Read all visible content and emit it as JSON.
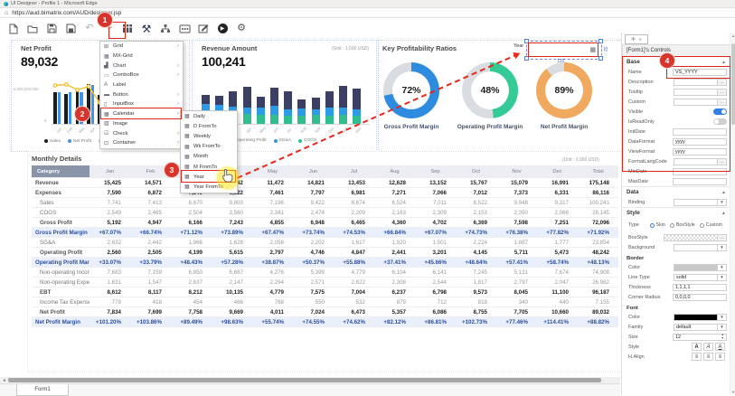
{
  "browser": {
    "title": "UI Designer - Profile 1 - Microsoft Edge",
    "url": "https://aud.bimatrix.com/AUD/designer.jsp"
  },
  "toolbar": {
    "icons": [
      "new-file-icon",
      "open-folder-icon",
      "save-icon",
      "save-all-icon",
      "undo-icon",
      "redo-icon",
      "data-table-icon",
      "design-tools-icon",
      "hierarchy-icon",
      "dataset-icon",
      "edit-icon",
      "run-icon",
      "settings-icon"
    ]
  },
  "menu": {
    "items": [
      {
        "label": "Grid",
        "icon": "grid-icon",
        "submenu": true
      },
      {
        "label": "MX-Grid",
        "icon": "mx-grid-icon",
        "submenu": false
      },
      {
        "label": "Chart",
        "icon": "chart-icon",
        "submenu": true
      },
      {
        "label": "ComboBox",
        "icon": "combobox-icon",
        "submenu": true
      },
      {
        "label": "Label",
        "icon": "label-icon",
        "submenu": false
      },
      {
        "label": "Button",
        "icon": "button-icon",
        "submenu": true
      },
      {
        "label": "InputBox",
        "icon": "inputbox-icon",
        "submenu": true
      },
      {
        "label": "Calendar",
        "icon": "calendar-icon",
        "submenu": true,
        "highlighted": true
      },
      {
        "label": "Image",
        "icon": "image-icon",
        "submenu": false
      },
      {
        "label": "Check",
        "icon": "check-icon",
        "submenu": true
      },
      {
        "label": "Container",
        "icon": "container-icon",
        "submenu": true
      }
    ]
  },
  "submenu": {
    "items": [
      {
        "label": "Daily"
      },
      {
        "label": "D FromTo"
      },
      {
        "label": "Weekly"
      },
      {
        "label": "Wk FromTo"
      },
      {
        "label": "Month"
      },
      {
        "label": "M FromTo"
      },
      {
        "label": "Year",
        "highlighted": true
      },
      {
        "label": "Year FromTo"
      }
    ]
  },
  "annotations": {
    "badges": [
      "1",
      "2",
      "3",
      "4"
    ]
  },
  "canvas": {
    "net_profit": {
      "title": "Net Profit",
      "value": "89,032",
      "y_axis_top": "6,000,000,000",
      "y_axis_bottom": "0",
      "legend": [
        "Sales",
        "Net Profit"
      ]
    },
    "revenue": {
      "title": "Revenue Amount",
      "unit": "(Unit : 1,000 USD)",
      "value": "100,241",
      "legend": [
        "Operating Profit",
        "SG&A",
        "COGS"
      ]
    },
    "ratios": {
      "title": "Key Profitability Ratios",
      "donuts": [
        {
          "pct": "72%",
          "label": "Gross Profit Margin",
          "color": "#2e8ce0"
        },
        {
          "pct": "48%",
          "label": "Operating Profit Margin",
          "color": "#35cb96"
        },
        {
          "pct": "89%",
          "label": "Net Profit Margin",
          "color": "#f0a95f"
        }
      ]
    },
    "calendar_control": {
      "label": "Year",
      "width_dim": "120",
      "height_dim": "32"
    },
    "table": {
      "title": "Monthly Details",
      "unit": "(Unit : 1,000 USD)",
      "columns": [
        "Category",
        "Jan",
        "Feb",
        "Mar",
        "Apr",
        "May",
        "Jun",
        "Jul",
        "Aug",
        "Sep",
        "Oct",
        "Nov",
        "Dec",
        "Total"
      ],
      "rows": [
        {
          "label": "Revenue",
          "style": "bold",
          "indent": false,
          "cells": [
            "15,425",
            "14,571",
            "15,447",
            "16,342",
            "11,472",
            "14,821",
            "13,453",
            "12,628",
            "13,152",
            "15,767",
            "15,079",
            "16,991",
            "175,148"
          ]
        },
        {
          "label": "Expenses",
          "style": "bold",
          "indent": false,
          "cells": [
            "7,590",
            "6,872",
            "7,540",
            "6,822",
            "7,461",
            "7,797",
            "6,981",
            "7,271",
            "7,066",
            "7,012",
            "7,373",
            "6,331",
            "86,116"
          ]
        },
        {
          "label": "Sales",
          "style": "sub",
          "indent": true,
          "cells": [
            "7,741",
            "7,413",
            "8,670",
            "9,803",
            "7,196",
            "9,422",
            "8,674",
            "6,524",
            "7,011",
            "8,522",
            "9,948",
            "9,317",
            "100,241"
          ]
        },
        {
          "label": "COGS",
          "style": "sub",
          "indent": true,
          "cells": [
            "2,549",
            "2,465",
            "2,504",
            "2,560",
            "2,341",
            "2,474",
            "2,209",
            "2,163",
            "2,309",
            "2,153",
            "2,350",
            "2,066",
            "28,145"
          ]
        },
        {
          "label": "Gross Profit",
          "style": "bold",
          "indent": true,
          "cells": [
            "5,192",
            "4,947",
            "6,166",
            "7,243",
            "4,855",
            "6,948",
            "6,465",
            "4,360",
            "4,702",
            "6,369",
            "7,598",
            "7,251",
            "72,096"
          ]
        },
        {
          "label": "Gross Profit Margin",
          "style": "margin",
          "indent": false,
          "cells": [
            "+67.07%",
            "+66.74%",
            "+71.12%",
            "+73.89%",
            "+67.47%",
            "+73.74%",
            "+74.53%",
            "+66.84%",
            "+67.07%",
            "+74.73%",
            "+76.38%",
            "+77.82%",
            "+71.92%"
          ]
        },
        {
          "label": "SG&A",
          "style": "sub",
          "indent": true,
          "cells": [
            "2,632",
            "2,442",
            "1,966",
            "1,628",
            "2,058",
            "2,202",
            "1,617",
            "1,920",
            "1,501",
            "2,224",
            "1,887",
            "1,777",
            "23,854"
          ]
        },
        {
          "label": "Operating Profit",
          "style": "bold",
          "indent": true,
          "cells": [
            "2,560",
            "2,505",
            "4,199",
            "5,615",
            "2,797",
            "4,746",
            "4,847",
            "2,441",
            "3,201",
            "4,145",
            "5,711",
            "5,473",
            "48,242"
          ]
        },
        {
          "label": "Operating Profit Margin",
          "style": "margin",
          "indent": false,
          "cells": [
            "+33.07%",
            "+33.79%",
            "+48.43%",
            "+57.28%",
            "+38.87%",
            "+50.37%",
            "+55.88%",
            "+37.41%",
            "+45.66%",
            "+48.64%",
            "+57.41%",
            "+58.74%",
            "+48.13%"
          ]
        },
        {
          "label": "Non-operating Income",
          "style": "sub",
          "indent": true,
          "cells": [
            "7,683",
            "7,159",
            "6,850",
            "6,667",
            "4,276",
            "5,399",
            "4,779",
            "6,104",
            "6,141",
            "7,245",
            "5,131",
            "7,674",
            "74,908"
          ]
        },
        {
          "label": "Non-operating Expense",
          "style": "sub",
          "indent": true,
          "cells": [
            "1,631",
            "1,547",
            "2,637",
            "2,147",
            "2,294",
            "2,571",
            "2,622",
            "2,308",
            "2,544",
            "1,817",
            "2,797",
            "2,047",
            "26,962"
          ]
        },
        {
          "label": "EBT",
          "style": "bold",
          "indent": true,
          "cells": [
            "8,612",
            "8,117",
            "8,212",
            "10,135",
            "4,779",
            "7,575",
            "7,004",
            "6,237",
            "6,798",
            "9,573",
            "8,045",
            "11,100",
            "96,187"
          ]
        },
        {
          "label": "Income Tax Expense",
          "style": "sub",
          "indent": true,
          "cells": [
            "778",
            "418",
            "454",
            "466",
            "768",
            "550",
            "532",
            "879",
            "712",
            "818",
            "340",
            "440",
            "7,155"
          ]
        },
        {
          "label": "Net Profit",
          "style": "bold",
          "indent": true,
          "cells": [
            "7,834",
            "7,699",
            "7,758",
            "9,669",
            "4,011",
            "7,024",
            "6,473",
            "5,357",
            "6,086",
            "8,755",
            "7,705",
            "10,660",
            "89,032"
          ]
        },
        {
          "label": "Net Profit Margin",
          "style": "margin",
          "indent": false,
          "cells": [
            "+101.20%",
            "+103.86%",
            "+89.49%",
            "+98.63%",
            "+55.74%",
            "+74.55%",
            "+74.62%",
            "+82.12%",
            "+86.81%",
            "+102.73%",
            "+77.46%",
            "+114.41%",
            "+88.82%"
          ]
        }
      ]
    }
  },
  "panel": {
    "header": "[Form1]'s Controls",
    "sections": [
      {
        "title": "Base",
        "rows": [
          {
            "label": "Name",
            "type": "input",
            "value": "VS_YYYY",
            "highlight": true
          },
          {
            "label": "Description",
            "type": "ellipsis",
            "value": ""
          },
          {
            "label": "Tooltip",
            "type": "ellipsis",
            "value": ""
          },
          {
            "label": "Custom",
            "type": "ellipsis",
            "value": ""
          },
          {
            "label": "Visible",
            "type": "toggle",
            "value": "on"
          },
          {
            "label": "IsReadOnly",
            "type": "toggle",
            "value": "off"
          },
          {
            "label": "InitDate",
            "type": "input",
            "value": ""
          },
          {
            "label": "DataFormat",
            "type": "input",
            "value": "yyyy"
          },
          {
            "label": "ViewFormat",
            "type": "input",
            "value": "yyyy"
          },
          {
            "label": "FormatLangCode",
            "type": "ellipsis",
            "value": ""
          },
          {
            "label": "MinDate",
            "type": "input",
            "value": ""
          },
          {
            "label": "MaxDate",
            "type": "input",
            "value": ""
          }
        ]
      },
      {
        "title": "Data",
        "rows": [
          {
            "label": "Binding",
            "type": "select",
            "value": ""
          }
        ]
      },
      {
        "title": "Style",
        "rows": [
          {
            "label": "Type",
            "type": "radios",
            "options": [
              "Skin",
              "BoxStyle",
              "Custom"
            ],
            "selected": "Skin"
          },
          {
            "label": "BoxStyle",
            "type": "pattern",
            "value": ""
          },
          {
            "label": "Background",
            "type": "select",
            "value": ""
          },
          {
            "label": "Border",
            "type": "subheader"
          },
          {
            "label": "Color",
            "type": "swatch",
            "value": "#c9c9c9"
          },
          {
            "label": "Line Type",
            "type": "select",
            "value": "solid"
          },
          {
            "label": "Thickness",
            "type": "input",
            "value": "1,1,1,1"
          },
          {
            "label": "Corner Radius",
            "type": "input",
            "value": "0,0,0,0"
          },
          {
            "label": "Font",
            "type": "subheader"
          },
          {
            "label": "Color",
            "type": "swatch",
            "value": "#000000"
          },
          {
            "label": "Family",
            "type": "select",
            "value": "default"
          },
          {
            "label": "Size",
            "type": "spinner",
            "value": "12"
          },
          {
            "label": "Style",
            "type": "style-buttons"
          },
          {
            "label": "H.Align",
            "type": "align-buttons"
          }
        ]
      }
    ]
  },
  "statusbar": {
    "tab": "Form1"
  },
  "chart_data": [
    {
      "type": "bar",
      "subtype": "bar-line-combo",
      "title": "Net Profit",
      "displayed_total": "89,032",
      "categories": [
        "Jan",
        "Feb",
        "Mar",
        "Apr",
        "May",
        "Jun",
        "Jul",
        "Aug",
        "Sep",
        "Oct",
        "Nov",
        "Dec"
      ],
      "series": [
        {
          "name": "Sales",
          "color": "#1c1c1c",
          "values": [
            7741,
            7413,
            8670,
            9803,
            7196,
            9422,
            8674,
            6524,
            7011,
            8522,
            9948,
            9317
          ]
        },
        {
          "name": "Net Profit",
          "color": "#3f93e8",
          "values": [
            7834,
            7699,
            7758,
            9669,
            4011,
            7024,
            6473,
            5357,
            6086,
            8755,
            7705,
            10660
          ]
        },
        {
          "name": "Net Profit Margin",
          "render": "line",
          "color": "#f2c12e",
          "values": [
            101.2,
            103.86,
            89.49,
            98.63,
            55.74,
            74.55,
            74.62,
            82.12,
            86.81,
            102.73,
            77.46,
            114.41
          ]
        }
      ],
      "ylabel": "",
      "xlabel": "",
      "y_axis_labels": [
        "6,000,000,000",
        "0"
      ],
      "legend_position": "bottom"
    },
    {
      "type": "bar",
      "subtype": "stacked",
      "title": "Revenue Amount",
      "unit": "(Unit : 1,000 USD)",
      "displayed_total": "100,241",
      "categories": [
        "Jan",
        "Feb",
        "Mar",
        "Apr",
        "May",
        "Jun",
        "Jul",
        "Aug",
        "Sep",
        "Oct",
        "Nov",
        "Dec"
      ],
      "series": [
        {
          "name": "COGS",
          "color": "#2fbf8f",
          "values": [
            2549,
            2465,
            2504,
            2560,
            2341,
            2474,
            2209,
            2163,
            2309,
            2153,
            2350,
            2066
          ]
        },
        {
          "name": "SG&A",
          "color": "#2e9be6",
          "values": [
            2632,
            2442,
            1966,
            1628,
            2058,
            2202,
            1617,
            1920,
            1501,
            2224,
            1887,
            1777
          ]
        },
        {
          "name": "Operating Profit",
          "color": "#3b3f63",
          "values": [
            2560,
            2505,
            4199,
            5615,
            2797,
            4746,
            4847,
            2441,
            3201,
            4145,
            5711,
            5473
          ]
        }
      ],
      "legend_position": "bottom"
    },
    {
      "type": "pie",
      "subtype": "donut-trio",
      "title": "Key Profitability Ratios",
      "items": [
        {
          "label": "Gross Profit Margin",
          "value": 72,
          "color": "#2e8ce0"
        },
        {
          "label": "Operating Profit Margin",
          "value": 48,
          "color": "#35cb96"
        },
        {
          "label": "Net Profit Margin",
          "value": 89,
          "color": "#f0a95f"
        }
      ]
    }
  ]
}
